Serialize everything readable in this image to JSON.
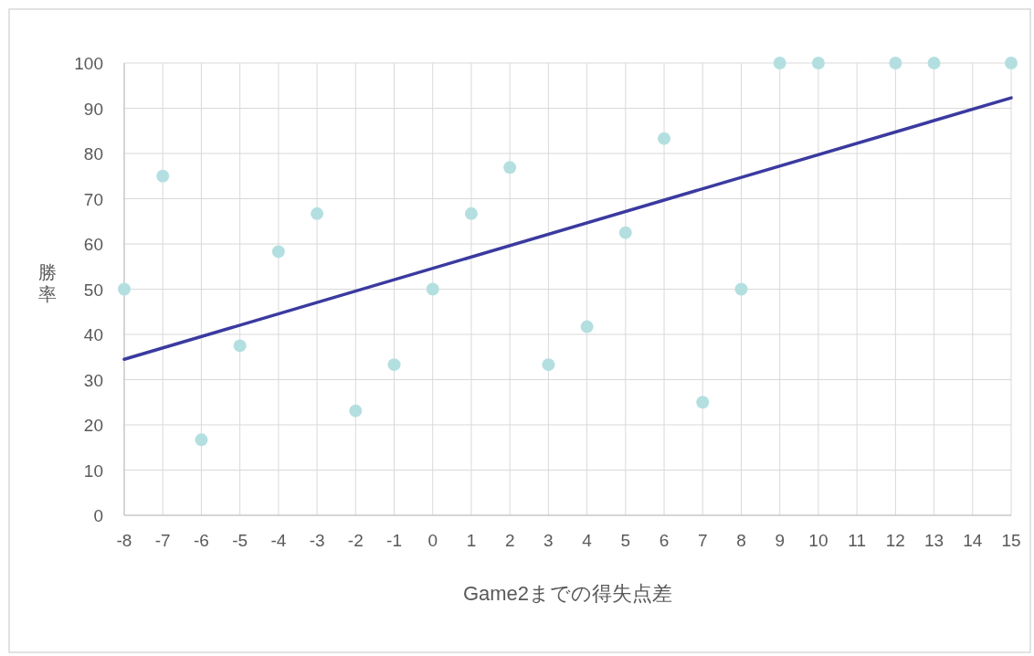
{
  "chart_data": {
    "type": "scatter",
    "xlabel": "Game2までの得失点差",
    "ylabel": "勝率",
    "xlim": [
      -8,
      15
    ],
    "xticks": [
      -8,
      -7,
      -6,
      -5,
      -4,
      -3,
      -2,
      -1,
      0,
      1,
      2,
      3,
      4,
      5,
      6,
      7,
      8,
      9,
      10,
      11,
      12,
      13,
      14,
      15
    ],
    "ylim": [
      0,
      100
    ],
    "yticks": [
      0,
      10,
      20,
      30,
      40,
      50,
      60,
      70,
      80,
      90,
      100
    ],
    "grid": true,
    "series": [
      {
        "marker": "circle",
        "color": "#b4dfe0",
        "x": [
          -8,
          -7,
          -6,
          -5,
          -4,
          -3,
          -2,
          -1,
          0,
          1,
          2,
          3,
          4,
          5,
          6,
          7,
          8,
          9,
          10,
          12,
          13,
          15
        ],
        "values": [
          50,
          75,
          16.7,
          37.5,
          58.3,
          66.7,
          23.1,
          33.3,
          50,
          66.7,
          76.9,
          33.3,
          41.7,
          62.5,
          83.3,
          25,
          50,
          100,
          100,
          100,
          100,
          100
        ]
      },
      {
        "type": "line",
        "color": "#3a3aa0",
        "x": [
          -8,
          15
        ],
        "values": [
          34.5,
          92.3
        ]
      }
    ]
  }
}
